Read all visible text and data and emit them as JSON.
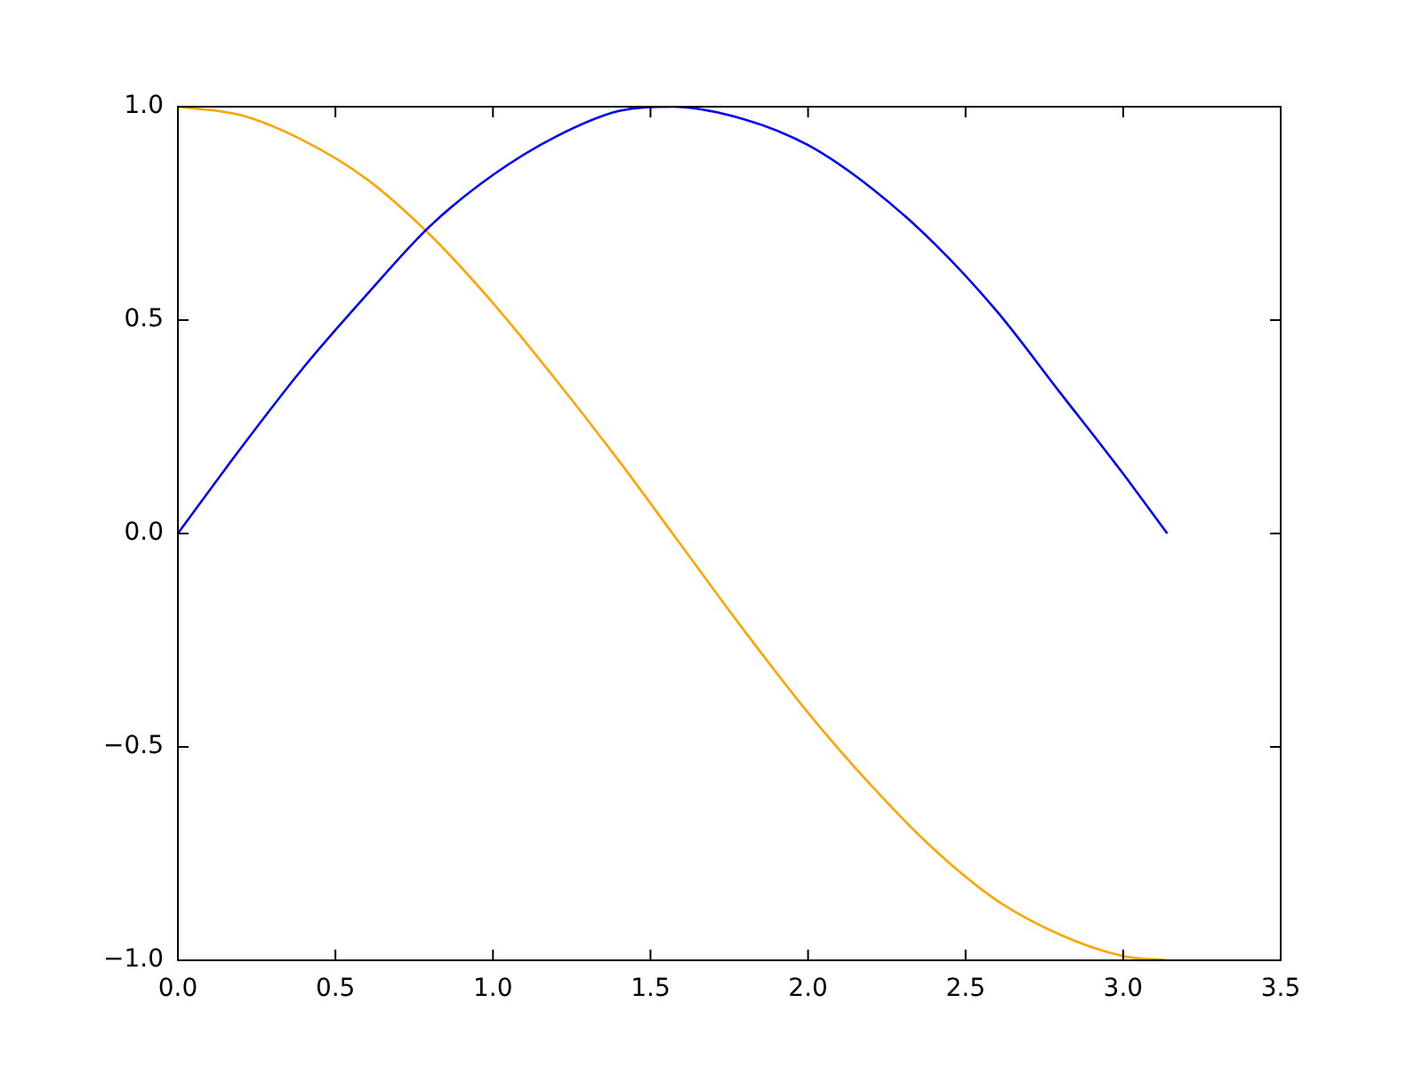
{
  "chart_data": {
    "type": "line",
    "x": [
      0,
      0.2,
      0.4,
      0.6,
      0.8,
      1.0,
      1.2,
      1.4,
      1.57,
      1.8,
      2.0,
      2.2,
      2.4,
      2.6,
      2.8,
      3.0,
      3.14
    ],
    "series": [
      {
        "color": "#0000ff",
        "values": [
          0,
          0.2,
          0.39,
          0.56,
          0.72,
          0.84,
          0.93,
          0.99,
          1.0,
          0.97,
          0.91,
          0.81,
          0.68,
          0.52,
          0.33,
          0.14,
          0
        ]
      },
      {
        "color": "#ffa500",
        "values": [
          1,
          0.98,
          0.92,
          0.83,
          0.7,
          0.54,
          0.36,
          0.17,
          0,
          -0.23,
          -0.42,
          -0.59,
          -0.74,
          -0.86,
          -0.94,
          -0.99,
          -1.0
        ]
      }
    ],
    "xlim": [
      0,
      3.5
    ],
    "ylim": [
      -1,
      1
    ],
    "xticks": [
      {
        "value": 0,
        "label": "0.0"
      },
      {
        "value": 0.5,
        "label": "0.5"
      },
      {
        "value": 1,
        "label": "1.0"
      },
      {
        "value": 1.5,
        "label": "1.5"
      },
      {
        "value": 2,
        "label": "2.0"
      },
      {
        "value": 2.5,
        "label": "2.5"
      },
      {
        "value": 3,
        "label": "3.0"
      },
      {
        "value": 3.5,
        "label": "3.5"
      }
    ],
    "yticks": [
      {
        "value": -1,
        "label": "−1.0"
      },
      {
        "value": -0.5,
        "label": "−0.5"
      },
      {
        "value": 0,
        "label": "0.0"
      },
      {
        "value": 0.5,
        "label": "0.5"
      },
      {
        "value": 1,
        "label": "1.0"
      }
    ],
    "grid": false,
    "legend": false,
    "marker": "none",
    "line_style": "solid"
  }
}
